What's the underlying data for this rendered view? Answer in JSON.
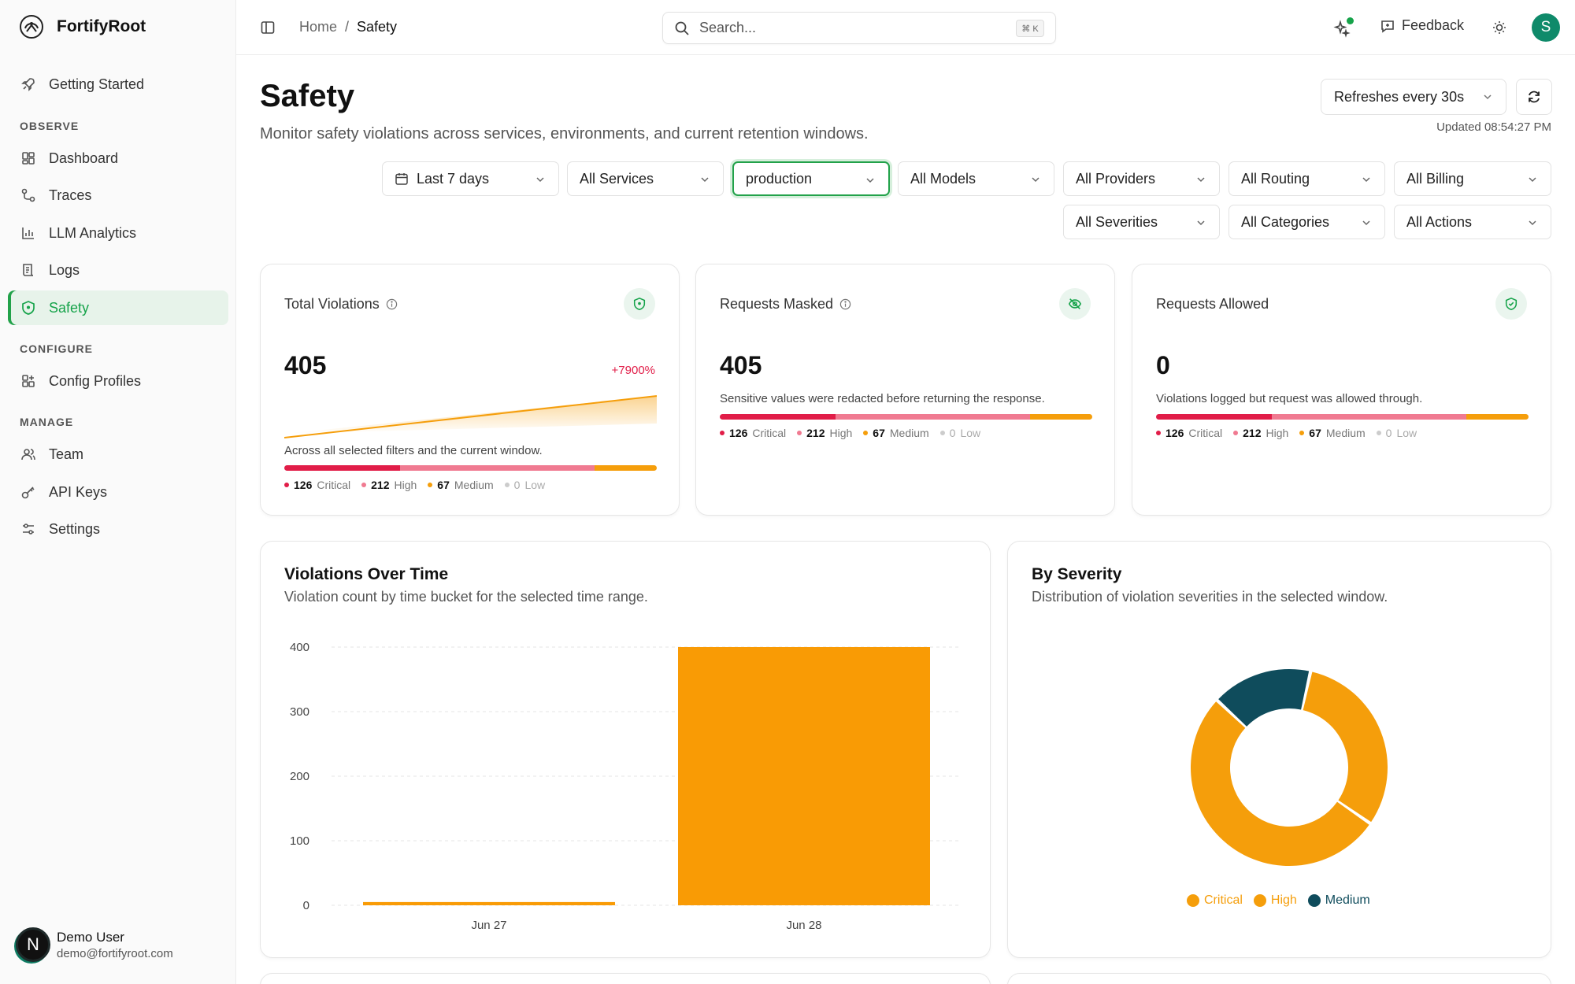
{
  "app": {
    "name": "FortifyRoot"
  },
  "sidebar": {
    "items": [
      {
        "label": "Getting Started",
        "icon": "rocket-icon"
      },
      {
        "label": "Dashboard",
        "icon": "dashboard-icon"
      },
      {
        "label": "Traces",
        "icon": "traces-icon"
      },
      {
        "label": "LLM Analytics",
        "icon": "chart-icon"
      },
      {
        "label": "Logs",
        "icon": "logs-icon"
      },
      {
        "label": "Safety",
        "icon": "shield-icon",
        "active": true
      },
      {
        "label": "Config Profiles",
        "icon": "grid-plus-icon"
      },
      {
        "label": "Team",
        "icon": "users-icon"
      },
      {
        "label": "API Keys",
        "icon": "key-icon"
      },
      {
        "label": "Settings",
        "icon": "settings-icon"
      }
    ],
    "sections": {
      "observe": "OBSERVE",
      "configure": "CONFIGURE",
      "manage": "MANAGE"
    },
    "user": {
      "initial": "N",
      "name": "Demo User",
      "email": "demo@fortifyroot.com"
    }
  },
  "topbar": {
    "breadcrumb": {
      "home": "Home",
      "sep": "/",
      "current": "Safety"
    },
    "search": {
      "placeholder": "Search...",
      "shortcut": "⌘ K"
    },
    "feedback": "Feedback",
    "avatar": "S"
  },
  "header": {
    "title": "Safety",
    "subtitle": "Monitor safety violations across services, environments, and current retention windows.",
    "refresh": "Refreshes every 30s",
    "updated": "Updated 08:54:27 PM"
  },
  "filters": {
    "range": "Last 7 days",
    "services": "All Services",
    "environment": "production",
    "models": "All Models",
    "providers": "All Providers",
    "routing": "All Routing",
    "billing": "All Billing",
    "severities": "All Severities",
    "categories": "All Categories",
    "actions": "All Actions"
  },
  "severity_labels": {
    "critical": "Critical",
    "high": "High",
    "medium": "Medium",
    "low": "Low"
  },
  "severity_counts": {
    "critical": "126",
    "high": "212",
    "medium": "67",
    "low": "0"
  },
  "severity_fractions": {
    "critical": 0.311,
    "high": 0.523,
    "medium": 0.166,
    "low": 0
  },
  "colors": {
    "critical": "#e11d48",
    "high": "#f07a91",
    "medium": "#f59e0b",
    "accent": "#16a34a",
    "bar": "#f99b05",
    "donut_medium": "#0f4c5c"
  },
  "kpis": [
    {
      "title": "Total Violations",
      "value": "405",
      "change": "+7900%",
      "desc": "Across all selected filters and the current window.",
      "icon": "shield-icon"
    },
    {
      "title": "Requests Masked",
      "value": "405",
      "desc": "Sensitive values were redacted before returning the response.",
      "icon": "eye-off-icon"
    },
    {
      "title": "Requests Allowed",
      "value": "0",
      "desc": "Violations logged but request was allowed through.",
      "icon": "shield-check-icon"
    }
  ],
  "charts": {
    "over_time": {
      "title": "Violations Over Time",
      "subtitle": "Violation count by time bucket for the selected time range."
    },
    "severity": {
      "title": "By Severity",
      "subtitle": "Distribution of violation severities in the selected window."
    }
  },
  "chart_data": [
    {
      "type": "bar",
      "title": "Violations Over Time",
      "categories": [
        "Jun 27",
        "Jun 28"
      ],
      "values": [
        5,
        400
      ],
      "ylim": [
        0,
        400
      ],
      "yticks": [
        0,
        100,
        200,
        300,
        400
      ],
      "grid": true
    },
    {
      "type": "pie",
      "title": "By Severity",
      "labels": [
        "Critical",
        "High",
        "Medium"
      ],
      "values": [
        126,
        212,
        67
      ],
      "legend": "bottom"
    }
  ]
}
